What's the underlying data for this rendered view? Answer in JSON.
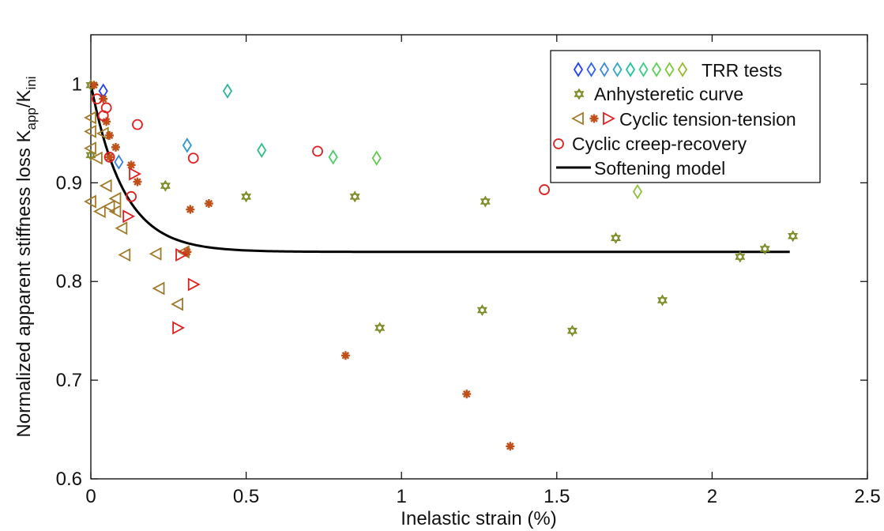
{
  "chart_data": {
    "type": "scatter",
    "xlabel": "Inelastic strain (%)",
    "ylabel_main": "Normalized apparent stiffness loss K",
    "ylabel_sub1": "app",
    "ylabel_mid": "/K",
    "ylabel_sub2": "ini",
    "xlim": [
      0,
      2.5
    ],
    "ylim": [
      0.6,
      1.05
    ],
    "xticks": [
      0,
      0.5,
      1,
      1.5,
      2,
      2.5
    ],
    "xtick_labels": [
      "0",
      "0.5",
      "1",
      "1.5",
      "2",
      "2.5"
    ],
    "yticks": [
      0.6,
      0.7,
      0.8,
      0.9,
      1.0
    ],
    "ytick_labels": [
      "0.6",
      "0.7",
      "0.8",
      "0.9",
      "1"
    ],
    "grid": false,
    "legend_position": "top-right",
    "legend": {
      "trr": "TRR tests",
      "anhysteretic": "Anhysteretic curve",
      "tension": "Cyclic tension-tension",
      "creep": "Cyclic creep-recovery",
      "model": "Softening model"
    },
    "trr_palette": [
      "#1f3fff",
      "#2f64f4",
      "#3a88e2",
      "#30a8c8",
      "#22c2a2",
      "#39cf86",
      "#5ccf56",
      "#7ec83c",
      "#9ab82e"
    ],
    "series": [
      {
        "name": "TRR tests",
        "marker": "diamond",
        "points": [
          [
            0.04,
            0.993,
            "#1f3fff"
          ],
          [
            0.09,
            0.921,
            "#3a7ce8"
          ],
          [
            0.31,
            0.938,
            "#2a9ac8"
          ],
          [
            0.44,
            0.993,
            "#2bb29a"
          ],
          [
            0.55,
            0.933,
            "#2fc088"
          ],
          [
            0.78,
            0.926,
            "#48cc6a"
          ],
          [
            0.92,
            0.925,
            "#62c850"
          ],
          [
            1.76,
            0.891,
            "#8bc03a"
          ]
        ]
      },
      {
        "name": "Anhysteretic curve",
        "marker": "star6",
        "color": "#7a8a22",
        "points": [
          [
            0.0,
            0.999
          ],
          [
            0.0,
            0.928
          ],
          [
            0.24,
            0.897
          ],
          [
            0.5,
            0.886
          ],
          [
            0.85,
            0.886
          ],
          [
            1.27,
            0.881
          ],
          [
            0.93,
            0.753
          ],
          [
            1.26,
            0.771
          ],
          [
            1.55,
            0.75
          ],
          [
            1.69,
            0.844
          ],
          [
            1.84,
            0.781
          ],
          [
            2.09,
            0.825
          ],
          [
            2.17,
            0.833
          ],
          [
            2.26,
            0.846
          ]
        ]
      },
      {
        "name": "Cyclic tension-tension (left)",
        "marker": "tri-left",
        "color": "#a07a2a",
        "points": [
          [
            0.0,
            0.966
          ],
          [
            0.0,
            0.952
          ],
          [
            0.0,
            0.935
          ],
          [
            0.02,
            0.925
          ],
          [
            0.04,
            0.95
          ],
          [
            0.05,
            0.897
          ],
          [
            0.0,
            0.881
          ],
          [
            0.03,
            0.871
          ],
          [
            0.06,
            0.876
          ],
          [
            0.08,
            0.884
          ],
          [
            0.08,
            0.871
          ],
          [
            0.1,
            0.854
          ],
          [
            0.11,
            0.827
          ],
          [
            0.21,
            0.828
          ],
          [
            0.22,
            0.793
          ],
          [
            0.28,
            0.777
          ],
          [
            0.3,
            0.83
          ]
        ]
      },
      {
        "name": "Cyclic tension-tension (star)",
        "marker": "asterisk",
        "color": "#c0501a",
        "points": [
          [
            0.01,
            0.999
          ],
          [
            0.04,
            0.985
          ],
          [
            0.05,
            0.962
          ],
          [
            0.06,
            0.948
          ],
          [
            0.08,
            0.936
          ],
          [
            0.06,
            0.926
          ],
          [
            0.13,
            0.918
          ],
          [
            0.15,
            0.901
          ],
          [
            0.32,
            0.873
          ],
          [
            0.38,
            0.879
          ],
          [
            0.31,
            0.83
          ],
          [
            0.82,
            0.725
          ],
          [
            1.21,
            0.686
          ],
          [
            1.35,
            0.633
          ]
        ]
      },
      {
        "name": "Cyclic tension-tension (right)",
        "marker": "tri-right",
        "color": "#e02020",
        "points": [
          [
            0.14,
            0.909
          ],
          [
            0.12,
            0.866
          ],
          [
            0.29,
            0.827
          ],
          [
            0.33,
            0.797
          ],
          [
            0.28,
            0.753
          ]
        ]
      },
      {
        "name": "Cyclic creep-recovery",
        "marker": "circle",
        "color": "#e02020",
        "points": [
          [
            0.02,
            0.985
          ],
          [
            0.05,
            0.976
          ],
          [
            0.04,
            0.968
          ],
          [
            0.15,
            0.959
          ],
          [
            0.06,
            0.926
          ],
          [
            0.33,
            0.925
          ],
          [
            0.13,
            0.886
          ],
          [
            0.73,
            0.932
          ],
          [
            1.46,
            0.893
          ]
        ]
      }
    ],
    "model": {
      "name": "Softening model",
      "color": "#000000",
      "x_min": 0.0,
      "x_max": 2.25,
      "y_inf": 0.83,
      "y0": 1.0,
      "k": 9.5
    }
  }
}
